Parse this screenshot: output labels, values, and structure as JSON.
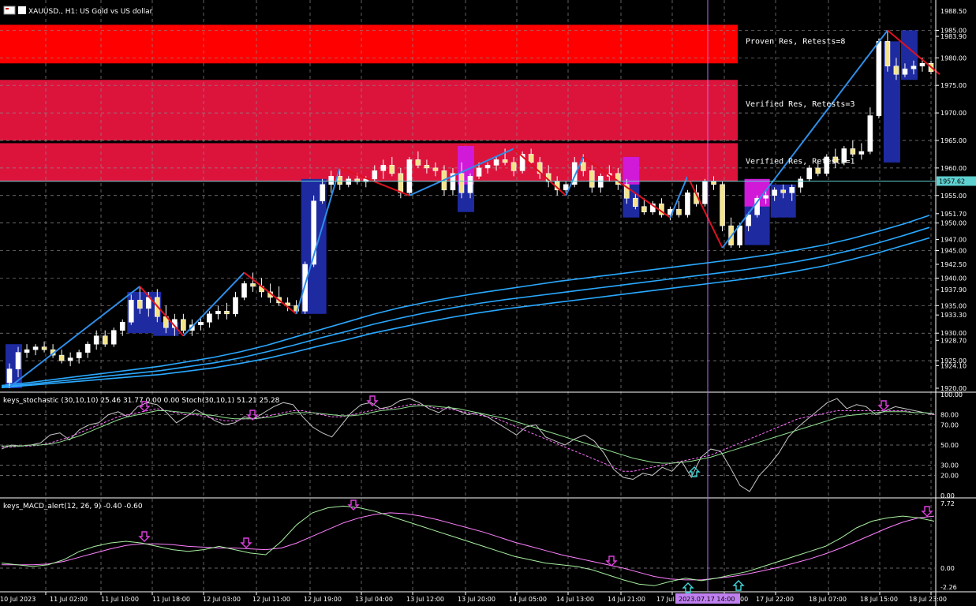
{
  "colors": {
    "background": "#000000",
    "grid": "#8a8a8a",
    "up_candle": "#ffffff",
    "down_candle": "#ffffff",
    "ma": "#2aa9ff",
    "zigzag_up": "#2e8ee8",
    "zigzag_down": "#e01020",
    "proven_zone": "#ff0000",
    "verified_zone": "#dc143c",
    "highlight_blue": "#1e2aa0",
    "highlight_magenta": "#d01ad8",
    "current_price_line": "#5fd0d0",
    "stoch_main": "#c8c8c8",
    "stoch_signal": "#ff70ff",
    "stoch_ma": "#90e090",
    "macd_main": "#a8f0a0",
    "macd_signal": "#ff80ff",
    "arrow_down": "#e040e0",
    "arrow_up": "#40d8d8",
    "cursor_line": "#b070ff"
  },
  "header": {
    "symbol_text": "XAUUSD., H1:  US Gold vs US dollar"
  },
  "zones": [
    {
      "name": "proven",
      "label": "Proven Res, Retests=8",
      "top": 1986.0,
      "bottom": 1979.0,
      "color_key": "proven_zone"
    },
    {
      "name": "verified_1",
      "label": "Verified Res, Retests=3",
      "top": 1976.0,
      "bottom": 1965.0,
      "color_key": "verified_zone"
    },
    {
      "name": "verified_2",
      "label": "Verified Res, Retests=1",
      "top": 1964.5,
      "bottom": 1957.5,
      "color_key": "verified_zone"
    }
  ],
  "price_axis": {
    "top_label": "1988.50",
    "labels": [
      "1985.00",
      "1983.90",
      "1980.00",
      "1975.00",
      "1970.00",
      "1965.00",
      "1960.00",
      "1955.00",
      "1951.70",
      "1950.00",
      "1947.00",
      "1945.00",
      "1942.50",
      "1940.00",
      "1937.90",
      "1935.00",
      "1933.30",
      "1930.00",
      "1928.70",
      "1925.00",
      "1924.10",
      "1920.00"
    ],
    "current_price": "1957.62"
  },
  "stoch_panel": {
    "title": "keys_stochastic (30,10,10) 25.46 31.77 0.00 0.00 Stoch(30,10,1) 51.21 25.28",
    "axis_labels": [
      "100.00",
      "80.00",
      "70.00",
      "50.00",
      "30.00",
      "20.00",
      "0.00"
    ]
  },
  "macd_panel": {
    "title": "keys_MACD_alert(12, 26, 9) -0.40 -0.60",
    "axis_labels": [
      "7.72",
      "0.00",
      "-2.26"
    ]
  },
  "time_axis": {
    "labels": [
      "10 Jul 2023",
      "11 Jul 02:00",
      "11 Jul 10:00",
      "11 Jul 18:00",
      "12 Jul 03:00",
      "12 Jul 11:00",
      "12 Jul 19:00",
      "13 Jul 04:00",
      "13 Jul 12:00",
      "13 Jul 20:00",
      "14 Jul 05:00",
      "14 Jul 13:00",
      "14 Jul 21:00",
      "17 Jul",
      "17 Jul 22:00",
      "18 Jul 07:00",
      "18 Jul 15:00",
      "18 Jul 23:00"
    ],
    "cursor_label": "2023.07.17 14:00",
    "cursor_suffix": "00"
  },
  "chart_data": {
    "type": "candlestick",
    "title": "XAUUSD., H1:  US Gold vs US dollar",
    "ylim": [
      1920.0,
      1988.5
    ],
    "note_series": "OHLC estimated from chart",
    "candles": [
      [
        1921.0,
        1924.5,
        1920.0,
        1923.5
      ],
      [
        1923.5,
        1927.5,
        1922.0,
        1926.5
      ],
      [
        1926.5,
        1928.0,
        1925.5,
        1927.0
      ],
      [
        1927.0,
        1928.0,
        1926.0,
        1927.5
      ],
      [
        1927.5,
        1928.5,
        1926.5,
        1927.0
      ],
      [
        1927.0,
        1928.0,
        1925.5,
        1926.0
      ],
      [
        1926.0,
        1927.0,
        1924.5,
        1925.0
      ],
      [
        1925.0,
        1926.5,
        1924.0,
        1925.5
      ],
      [
        1925.5,
        1927.0,
        1924.5,
        1926.5
      ],
      [
        1926.5,
        1928.5,
        1925.5,
        1928.0
      ],
      [
        1928.0,
        1930.5,
        1927.0,
        1929.5
      ],
      [
        1929.5,
        1930.5,
        1927.5,
        1928.0
      ],
      [
        1928.0,
        1931.0,
        1927.5,
        1930.5
      ],
      [
        1930.5,
        1932.5,
        1929.5,
        1932.0
      ],
      [
        1932.0,
        1937.0,
        1931.5,
        1936.0
      ],
      [
        1936.0,
        1938.5,
        1933.5,
        1934.5
      ],
      [
        1934.5,
        1937.5,
        1933.0,
        1936.5
      ],
      [
        1936.5,
        1938.0,
        1932.0,
        1933.0
      ],
      [
        1933.0,
        1935.0,
        1930.0,
        1931.0
      ],
      [
        1931.0,
        1933.5,
        1929.5,
        1932.5
      ],
      [
        1932.5,
        1933.5,
        1930.0,
        1930.5
      ],
      [
        1930.5,
        1932.5,
        1929.5,
        1931.5
      ],
      [
        1931.5,
        1933.0,
        1930.5,
        1932.0
      ],
      [
        1932.0,
        1934.0,
        1931.0,
        1933.5
      ],
      [
        1933.5,
        1935.0,
        1932.5,
        1934.0
      ],
      [
        1934.0,
        1935.5,
        1932.5,
        1933.5
      ],
      [
        1933.5,
        1937.5,
        1933.0,
        1936.5
      ],
      [
        1936.5,
        1939.5,
        1936.0,
        1939.0
      ],
      [
        1939.0,
        1941.0,
        1937.5,
        1938.5
      ],
      [
        1938.5,
        1940.0,
        1936.5,
        1937.5
      ],
      [
        1937.5,
        1939.0,
        1935.5,
        1936.5
      ],
      [
        1936.5,
        1938.5,
        1935.0,
        1935.5
      ],
      [
        1935.5,
        1936.5,
        1934.0,
        1935.0
      ],
      [
        1935.0,
        1936.0,
        1933.5,
        1934.0
      ],
      [
        1934.0,
        1943.0,
        1933.5,
        1942.5
      ],
      [
        1942.5,
        1955.0,
        1942.0,
        1954.0
      ],
      [
        1954.0,
        1958.0,
        1953.5,
        1957.0
      ],
      [
        1957.0,
        1959.5,
        1955.5,
        1958.5
      ],
      [
        1958.5,
        1960.0,
        1956.0,
        1957.0
      ],
      [
        1957.0,
        1958.5,
        1956.5,
        1958.0
      ],
      [
        1958.0,
        1959.0,
        1957.0,
        1957.5
      ],
      [
        1957.5,
        1958.5,
        1956.5,
        1958.0
      ],
      [
        1958.0,
        1960.5,
        1957.5,
        1959.5
      ],
      [
        1959.5,
        1961.5,
        1958.0,
        1960.5
      ],
      [
        1960.5,
        1962.0,
        1958.5,
        1959.0
      ],
      [
        1959.0,
        1960.0,
        1954.5,
        1955.5
      ],
      [
        1955.5,
        1962.0,
        1955.0,
        1961.5
      ],
      [
        1961.5,
        1963.0,
        1960.0,
        1960.5
      ],
      [
        1960.5,
        1961.5,
        1959.0,
        1960.0
      ],
      [
        1960.0,
        1961.0,
        1958.5,
        1959.5
      ],
      [
        1959.5,
        1960.5,
        1955.0,
        1956.0
      ],
      [
        1956.0,
        1960.0,
        1955.0,
        1959.0
      ],
      [
        1959.0,
        1961.0,
        1954.5,
        1955.5
      ],
      [
        1955.5,
        1959.0,
        1954.5,
        1958.5
      ],
      [
        1958.5,
        1961.0,
        1958.0,
        1960.0
      ],
      [
        1960.0,
        1961.0,
        1959.0,
        1960.5
      ],
      [
        1960.5,
        1962.0,
        1959.5,
        1961.5
      ],
      [
        1961.5,
        1963.5,
        1960.5,
        1961.0
      ],
      [
        1961.0,
        1962.0,
        1958.5,
        1959.5
      ],
      [
        1959.5,
        1963.0,
        1959.0,
        1962.5
      ],
      [
        1962.5,
        1963.5,
        1960.5,
        1961.0
      ],
      [
        1961.0,
        1962.0,
        1958.0,
        1959.0
      ],
      [
        1959.0,
        1960.5,
        1956.5,
        1957.5
      ],
      [
        1957.5,
        1958.5,
        1955.0,
        1956.0
      ],
      [
        1956.0,
        1957.5,
        1955.5,
        1957.0
      ],
      [
        1957.0,
        1962.0,
        1956.5,
        1961.0
      ],
      [
        1961.0,
        1962.5,
        1958.5,
        1959.5
      ],
      [
        1959.5,
        1960.5,
        1955.5,
        1956.5
      ],
      [
        1956.5,
        1959.0,
        1955.5,
        1958.5
      ],
      [
        1958.5,
        1960.5,
        1957.5,
        1959.0
      ],
      [
        1959.0,
        1960.0,
        1956.0,
        1957.0
      ],
      [
        1957.0,
        1958.0,
        1953.5,
        1954.5
      ],
      [
        1954.5,
        1955.5,
        1952.5,
        1953.0
      ],
      [
        1953.0,
        1954.5,
        1951.5,
        1952.0
      ],
      [
        1952.0,
        1954.0,
        1951.5,
        1953.5
      ],
      [
        1953.5,
        1954.5,
        1951.0,
        1951.5
      ],
      [
        1951.5,
        1953.0,
        1950.5,
        1952.5
      ],
      [
        1952.5,
        1954.0,
        1951.0,
        1951.5
      ],
      [
        1951.5,
        1956.0,
        1951.0,
        1955.5
      ],
      [
        1955.5,
        1957.0,
        1953.0,
        1953.5
      ],
      [
        1953.5,
        1958.0,
        1953.0,
        1957.5
      ],
      [
        1957.5,
        1958.5,
        1956.0,
        1957.0
      ],
      [
        1957.0,
        1957.5,
        1948.5,
        1949.5
      ],
      [
        1949.5,
        1951.0,
        1945.5,
        1946.0
      ],
      [
        1946.0,
        1950.0,
        1945.5,
        1949.5
      ],
      [
        1949.5,
        1952.0,
        1948.5,
        1951.5
      ],
      [
        1951.5,
        1955.0,
        1951.0,
        1954.5
      ],
      [
        1954.5,
        1956.0,
        1953.5,
        1955.0
      ],
      [
        1955.0,
        1956.5,
        1954.0,
        1956.0
      ],
      [
        1956.0,
        1957.0,
        1954.5,
        1955.5
      ],
      [
        1955.5,
        1957.0,
        1954.0,
        1956.5
      ],
      [
        1956.5,
        1958.5,
        1955.5,
        1958.0
      ],
      [
        1958.0,
        1960.5,
        1957.5,
        1960.0
      ],
      [
        1960.0,
        1961.5,
        1958.5,
        1959.0
      ],
      [
        1959.0,
        1962.5,
        1958.5,
        1962.0
      ],
      [
        1962.0,
        1963.5,
        1960.0,
        1961.0
      ],
      [
        1961.0,
        1964.0,
        1960.5,
        1963.5
      ],
      [
        1963.5,
        1965.0,
        1962.0,
        1962.5
      ],
      [
        1962.5,
        1964.5,
        1961.5,
        1963.0
      ],
      [
        1963.0,
        1971.0,
        1962.5,
        1969.5
      ],
      [
        1969.5,
        1983.5,
        1969.0,
        1983.0
      ],
      [
        1983.0,
        1985.0,
        1977.5,
        1978.5
      ],
      [
        1978.5,
        1980.0,
        1976.0,
        1977.0
      ],
      [
        1977.0,
        1979.0,
        1976.5,
        1978.0
      ],
      [
        1978.0,
        1979.5,
        1977.0,
        1978.5
      ],
      [
        1978.5,
        1980.0,
        1977.5,
        1979.0
      ],
      [
        1979.0,
        1979.5,
        1977.0,
        1977.5
      ]
    ],
    "series": [
      {
        "kind": "ma",
        "values": [
          1920.5,
          1921.0,
          1921.6,
          1922.2,
          1922.8,
          1923.4,
          1924.0,
          1924.8,
          1925.6,
          1926.6,
          1927.8,
          1929.2,
          1930.6,
          1932.0,
          1933.4,
          1934.6,
          1935.6,
          1936.5,
          1937.3,
          1938.0,
          1938.7,
          1939.4,
          1940.0,
          1940.6,
          1941.2,
          1941.8,
          1942.4,
          1943.0,
          1943.6,
          1944.3,
          1945.1,
          1946.0,
          1947.1,
          1948.4,
          1949.8,
          1951.4
        ]
      },
      {
        "kind": "ma",
        "values": [
          1920.3,
          1920.7,
          1921.2,
          1921.7,
          1922.2,
          1922.7,
          1923.2,
          1923.9,
          1924.6,
          1925.5,
          1926.6,
          1927.8,
          1929.1,
          1930.3,
          1931.6,
          1932.7,
          1933.7,
          1934.6,
          1935.4,
          1936.1,
          1936.7,
          1937.3,
          1937.9,
          1938.5,
          1939.1,
          1939.7,
          1940.3,
          1940.9,
          1941.5,
          1942.2,
          1943.0,
          1943.9,
          1945.0,
          1946.3,
          1947.7,
          1949.2
        ]
      },
      {
        "kind": "ma",
        "values": [
          1920.1,
          1920.5,
          1920.9,
          1921.3,
          1921.7,
          1922.1,
          1922.5,
          1923.1,
          1923.7,
          1924.5,
          1925.4,
          1926.5,
          1927.7,
          1928.8,
          1930.0,
          1931.0,
          1932.0,
          1932.9,
          1933.7,
          1934.4,
          1935.0,
          1935.6,
          1936.2,
          1936.8,
          1937.4,
          1938.0,
          1938.6,
          1939.2,
          1939.8,
          1940.5,
          1941.3,
          1942.2,
          1943.3,
          1944.5,
          1945.9,
          1947.3
        ]
      }
    ],
    "zigzag": [
      [
        0,
        1920.2
      ],
      [
        15,
        1938.5
      ],
      [
        20,
        1929.5
      ],
      [
        27,
        1941.0
      ],
      [
        33,
        1933.5
      ],
      [
        38,
        1960.0
      ],
      [
        46,
        1955.0
      ],
      [
        58,
        1963.5
      ],
      [
        64,
        1955.0
      ],
      [
        66,
        1962.0
      ],
      [
        76,
        1951.0
      ],
      [
        78,
        1958.5
      ],
      [
        82,
        1945.5
      ],
      [
        101,
        1985.0
      ],
      [
        107,
        1977.0
      ]
    ],
    "stochastic": {
      "main": [
        46,
        50,
        49,
        50,
        52,
        60,
        62,
        55,
        65,
        70,
        72,
        80,
        83,
        78,
        88,
        92,
        90,
        82,
        72,
        78,
        85,
        80,
        74,
        70,
        72,
        78,
        76,
        82,
        88,
        92,
        90,
        78,
        68,
        62,
        58,
        70,
        82,
        90,
        92,
        86,
        88,
        94,
        96,
        92,
        86,
        82,
        88,
        84,
        80,
        82,
        78,
        72,
        66,
        60,
        68,
        70,
        58,
        54,
        50,
        56,
        60,
        54,
        42,
        26,
        18,
        16,
        22,
        20,
        28,
        24,
        34,
        18,
        38,
        46,
        44,
        28,
        10,
        4,
        20,
        30,
        42,
        58,
        68,
        76,
        84,
        92,
        96,
        86,
        90,
        88,
        80,
        84,
        88,
        86,
        84,
        82,
        80
      ],
      "signal": [
        48,
        48,
        49,
        49,
        50,
        52,
        55,
        58,
        62,
        66,
        70,
        74,
        78,
        80,
        82,
        84,
        86,
        84,
        82,
        80,
        80,
        78,
        76,
        74,
        74,
        76,
        76,
        78,
        80,
        82,
        84,
        84,
        82,
        80,
        78,
        78,
        80,
        82,
        84,
        86,
        86,
        88,
        90,
        90,
        88,
        86,
        86,
        84,
        82,
        80,
        78,
        76,
        72,
        68,
        64,
        60,
        56,
        52,
        48,
        44,
        40,
        36,
        32,
        28,
        24,
        24,
        26,
        28,
        30,
        32,
        34,
        36,
        38,
        40,
        44,
        48,
        52,
        56,
        60,
        64,
        68,
        72,
        76,
        78,
        80,
        82,
        84,
        84,
        84,
        84,
        84,
        84,
        84,
        84,
        82,
        82,
        80
      ],
      "ma": [
        49,
        49,
        49,
        50,
        50,
        51,
        53,
        56,
        59,
        63,
        67,
        71,
        75,
        78,
        80,
        82,
        84,
        84,
        83,
        82,
        81,
        80,
        79,
        77,
        76,
        76,
        76,
        77,
        78,
        80,
        82,
        82,
        82,
        81,
        80,
        79,
        79,
        80,
        82,
        84,
        85,
        86,
        88,
        89,
        89,
        88,
        87,
        86,
        84,
        82,
        80,
        78,
        76,
        73,
        70,
        67,
        64,
        61,
        58,
        55,
        52,
        49,
        46,
        43,
        40,
        37,
        35,
        33,
        32,
        32,
        33,
        34,
        36,
        38,
        41,
        44,
        47,
        50,
        53,
        56,
        59,
        62,
        65,
        68,
        71,
        74,
        77,
        79,
        80,
        81,
        82,
        83,
        83,
        83,
        82,
        82,
        81
      ]
    },
    "macd": {
      "main": [
        0.6,
        0.4,
        0.2,
        0.4,
        1.0,
        2.0,
        2.6,
        3.0,
        3.2,
        3.0,
        2.6,
        2.2,
        2.0,
        2.2,
        2.6,
        2.2,
        1.8,
        1.6,
        3.2,
        5.2,
        6.6,
        7.2,
        7.4,
        7.2,
        6.8,
        6.2,
        5.6,
        5.0,
        4.4,
        3.8,
        3.2,
        2.6,
        2.0,
        1.4,
        1.0,
        0.6,
        0.4,
        0.2,
        -0.2,
        -0.8,
        -1.4,
        -1.9,
        -2.1,
        -1.6,
        -1.2,
        -1.5,
        -1.2,
        -0.8,
        -0.4,
        0.2,
        0.8,
        1.4,
        2.0,
        2.6,
        3.6,
        4.8,
        5.6,
        6.0,
        6.2,
        6.0,
        5.6
      ],
      "signal": [
        0.4,
        0.4,
        0.4,
        0.5,
        0.8,
        1.3,
        1.8,
        2.3,
        2.7,
        2.9,
        2.9,
        2.8,
        2.6,
        2.5,
        2.4,
        2.4,
        2.3,
        2.2,
        2.4,
        3.0,
        3.8,
        4.6,
        5.4,
        6.0,
        6.4,
        6.6,
        6.5,
        6.2,
        5.8,
        5.3,
        4.8,
        4.3,
        3.7,
        3.1,
        2.6,
        2.1,
        1.6,
        1.2,
        0.8,
        0.4,
        0.0,
        -0.5,
        -1.0,
        -1.3,
        -1.4,
        -1.4,
        -1.2,
        -1.0,
        -0.7,
        -0.3,
        0.1,
        0.6,
        1.1,
        1.7,
        2.4,
        3.2,
        4.0,
        4.8,
        5.5,
        6.0,
        6.2
      ]
    }
  }
}
